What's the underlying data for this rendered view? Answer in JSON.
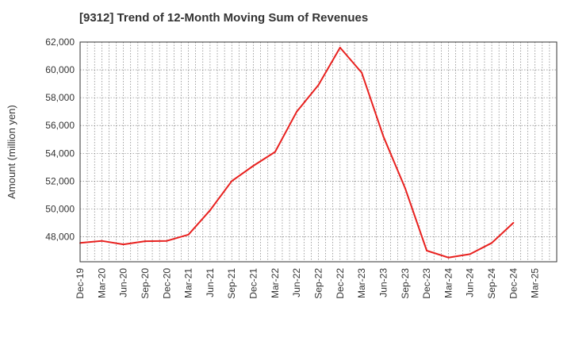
{
  "chart_data": {
    "type": "line",
    "title": "[9312]  Trend of 12-Month Moving Sum of Revenues",
    "xlabel": "",
    "ylabel": "Amount (million yen)",
    "ylim": [
      46200,
      62000
    ],
    "yticks": [
      "48,000",
      "50,000",
      "52,000",
      "54,000",
      "56,000",
      "58,000",
      "60,000",
      "62,000"
    ],
    "ytick_values": [
      48000,
      50000,
      52000,
      54000,
      56000,
      58000,
      60000,
      62000
    ],
    "grid": true,
    "categories": [
      "Dec-19",
      "Mar-20",
      "Jun-20",
      "Sep-20",
      "Dec-20",
      "Mar-21",
      "Jun-21",
      "Sep-21",
      "Dec-21",
      "Mar-22",
      "Jun-22",
      "Sep-22",
      "Dec-22",
      "Mar-23",
      "Jun-23",
      "Sep-23",
      "Dec-23",
      "Mar-24",
      "Jun-24",
      "Sep-24",
      "Dec-24",
      "Mar-25"
    ],
    "series": [
      {
        "color": "#e8211f",
        "values": [
          47550,
          47700,
          47450,
          47680,
          47700,
          48150,
          49900,
          52000,
          53100,
          54100,
          57000,
          58900,
          61600,
          59800,
          55200,
          51500,
          47000,
          46500,
          46750,
          47550,
          49000,
          null
        ]
      }
    ]
  }
}
